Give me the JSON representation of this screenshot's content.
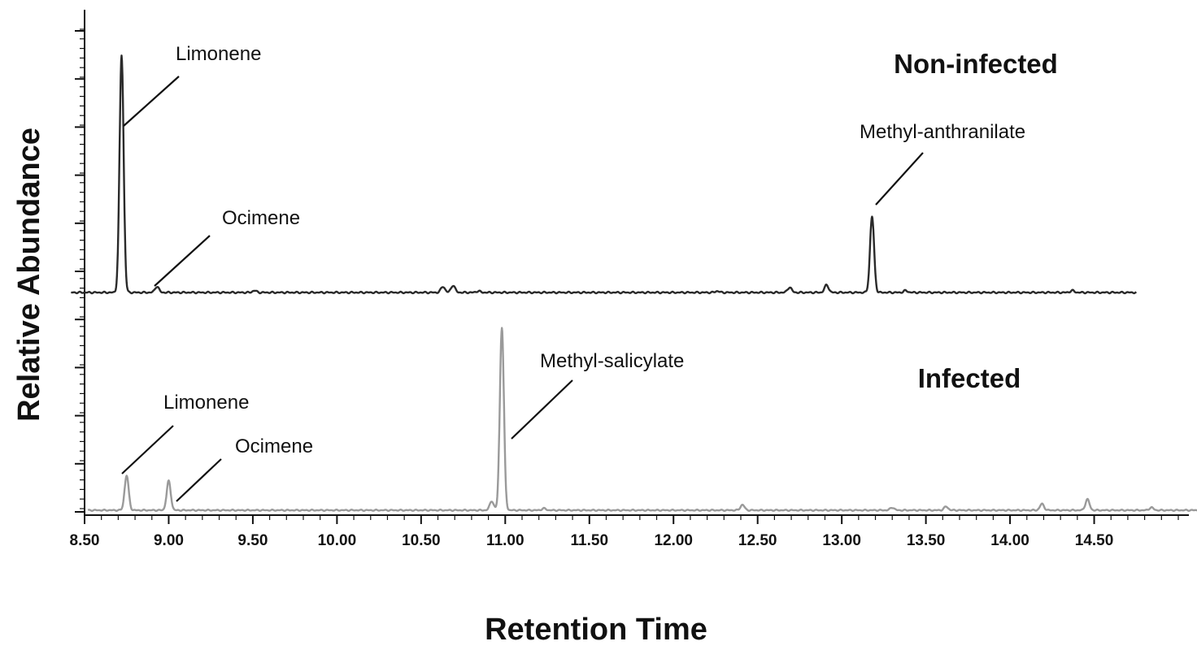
{
  "chart_data": {
    "type": "line",
    "xlabel": "Retention Time",
    "ylabel": "Relative Abundance",
    "xlim": [
      8.5,
      15.5
    ],
    "ylim": [
      0,
      100
    ],
    "x_ticks": [
      "8.50",
      "9.00",
      "9.50",
      "10.00",
      "10.50",
      "11.00",
      "11.50",
      "12.00",
      "12.50",
      "13.00",
      "13.50",
      "14.00",
      "14.50"
    ],
    "grid": false,
    "legend": "none",
    "series": [
      {
        "name": "Non-infected",
        "color": "#2a2a2a",
        "x_end": 14.75,
        "peaks": [
          {
            "x": 8.72,
            "y": 100,
            "label": "Limonene"
          },
          {
            "x": 8.93,
            "y": 2.5,
            "label": "Ocimene"
          },
          {
            "x": 13.18,
            "y": 32,
            "label": "Methyl-anthranilate"
          },
          {
            "x": 9.51,
            "y": 0.8
          },
          {
            "x": 10.63,
            "y": 2.5
          },
          {
            "x": 10.69,
            "y": 3
          },
          {
            "x": 10.84,
            "y": 0.6
          },
          {
            "x": 12.26,
            "y": 0.6
          },
          {
            "x": 12.69,
            "y": 2.2
          },
          {
            "x": 12.91,
            "y": 3.2
          },
          {
            "x": 13.38,
            "y": 0.8
          },
          {
            "x": 14.37,
            "y": 0.8
          }
        ]
      },
      {
        "name": "Infected",
        "color": "#9a9a9a",
        "x_end": 15.5,
        "peaks": [
          {
            "x": 8.75,
            "y": 19,
            "label": "Limonene"
          },
          {
            "x": 9.0,
            "y": 16,
            "label": "Ocimene"
          },
          {
            "x": 10.98,
            "y": 100,
            "label": "Methyl-salicylate"
          },
          {
            "x": 10.92,
            "y": 5
          },
          {
            "x": 11.23,
            "y": 1
          },
          {
            "x": 12.41,
            "y": 3
          },
          {
            "x": 13.3,
            "y": 1.5
          },
          {
            "x": 13.62,
            "y": 2
          },
          {
            "x": 14.19,
            "y": 3.5
          },
          {
            "x": 14.46,
            "y": 6
          },
          {
            "x": 14.84,
            "y": 1.5
          }
        ]
      }
    ],
    "annotations": [
      {
        "text": "Limonene",
        "series": "Non-infected"
      },
      {
        "text": "Ocimene",
        "series": "Non-infected"
      },
      {
        "text": "Methyl-anthranilate",
        "series": "Non-infected"
      },
      {
        "text": "Limonene",
        "series": "Infected"
      },
      {
        "text": "Ocimene",
        "series": "Infected"
      },
      {
        "text": "Methyl-salicylate",
        "series": "Infected"
      }
    ]
  }
}
